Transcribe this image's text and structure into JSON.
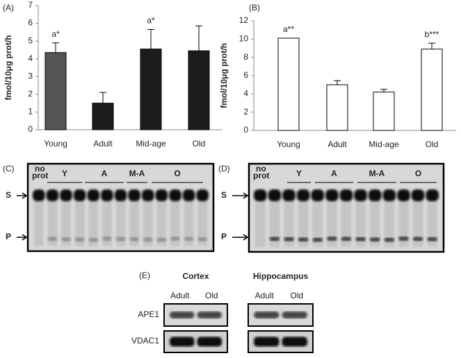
{
  "chart_data": [
    {
      "type": "bar",
      "panel": "(A)",
      "ylabel": "fmol/10μg prot/h",
      "categories": [
        "Young",
        "Adult",
        "Mid-age",
        "Old"
      ],
      "values": [
        4.35,
        1.5,
        4.55,
        4.45
      ],
      "errors": [
        0.55,
        0.6,
        1.1,
        1.4
      ],
      "colors": [
        "#555555",
        "#1c1c1c",
        "#1c1c1c",
        "#1c1c1c"
      ],
      "annotations": [
        "a*",
        null,
        "a*",
        null
      ],
      "ylim": [
        0,
        7
      ],
      "yticks": [
        0,
        1,
        2,
        3,
        4,
        5,
        6,
        7
      ]
    },
    {
      "type": "bar",
      "panel": "(B)",
      "ylabel": "fmol/10μg prot/h",
      "categories": [
        "Young",
        "Adult",
        "Mid-age",
        "Old"
      ],
      "values": [
        10.1,
        5.0,
        4.2,
        8.9
      ],
      "errors": [
        null,
        0.45,
        0.3,
        0.65
      ],
      "colors": [
        "#ffffff",
        "#ffffff",
        "#ffffff",
        "#ffffff"
      ],
      "annotations": [
        "a**",
        null,
        null,
        "b***"
      ],
      "ylim": [
        0,
        12
      ],
      "yticks": [
        0,
        2,
        4,
        6,
        8,
        10,
        12
      ]
    }
  ],
  "gels": [
    {
      "label": "(C)",
      "no_prot": [
        "no",
        "prot"
      ],
      "lanes": [
        "Y",
        "A",
        "M-A",
        "O"
      ],
      "bands": [
        "S",
        "P"
      ]
    },
    {
      "label": "(D)",
      "no_prot": [
        "no",
        "prot"
      ],
      "lanes": [
        "Y",
        "A",
        "M-A",
        "O"
      ],
      "bands": [
        "S",
        "P"
      ]
    }
  ],
  "blot": {
    "label": "(E)",
    "tissues": [
      {
        "name": "Cortex",
        "cols": [
          "Adult",
          "Old"
        ]
      },
      {
        "name": "Hippocampus",
        "cols": [
          "Adult",
          "Old"
        ]
      }
    ],
    "rows": [
      "APE1",
      "VDAC1"
    ]
  }
}
